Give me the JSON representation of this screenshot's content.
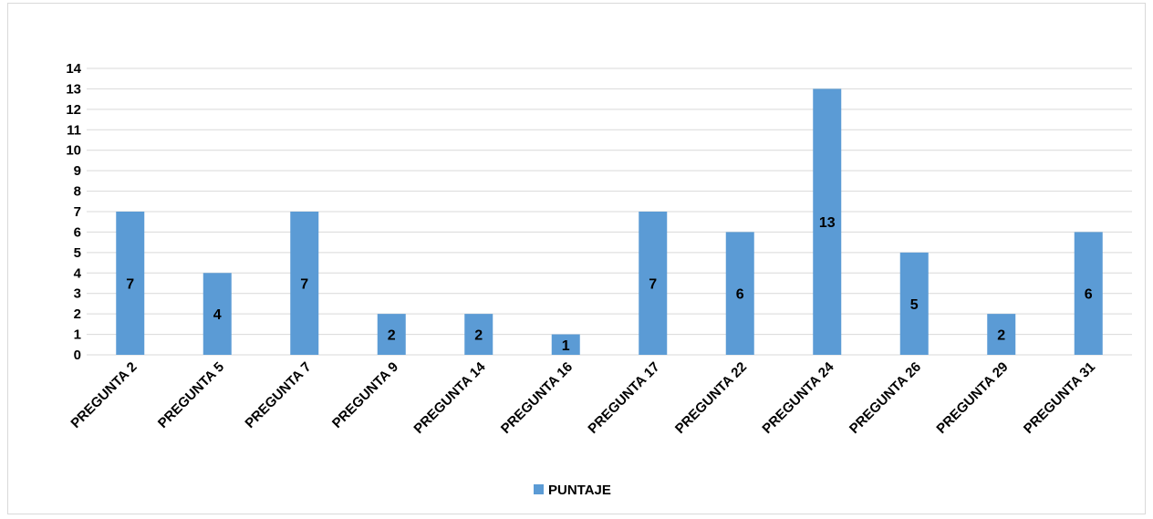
{
  "chart_data": {
    "type": "bar",
    "categories": [
      "PREGUNTA 2",
      "PREGUNTA 5",
      "PREGUNTA 7",
      "PREGUNTA 9",
      "PREGUNTA 14",
      "PREGUNTA 16",
      "PREGUNTA 17",
      "PREGUNTA 22",
      "PREGUNTA 24",
      "PREGUNTA 26",
      "PREGUNTA 29",
      "PREGUNTA 31"
    ],
    "series": [
      {
        "name": "PUNTAJE",
        "color": "#5b9bd5",
        "values": [
          7,
          4,
          7,
          2,
          2,
          1,
          7,
          6,
          13,
          5,
          2,
          6
        ]
      }
    ],
    "ylim": [
      0,
      14
    ],
    "yticks": [
      0,
      1,
      2,
      3,
      4,
      5,
      6,
      7,
      8,
      9,
      10,
      11,
      12,
      13,
      14
    ],
    "grid": true,
    "legend": "bottom",
    "data_labels": "center"
  }
}
